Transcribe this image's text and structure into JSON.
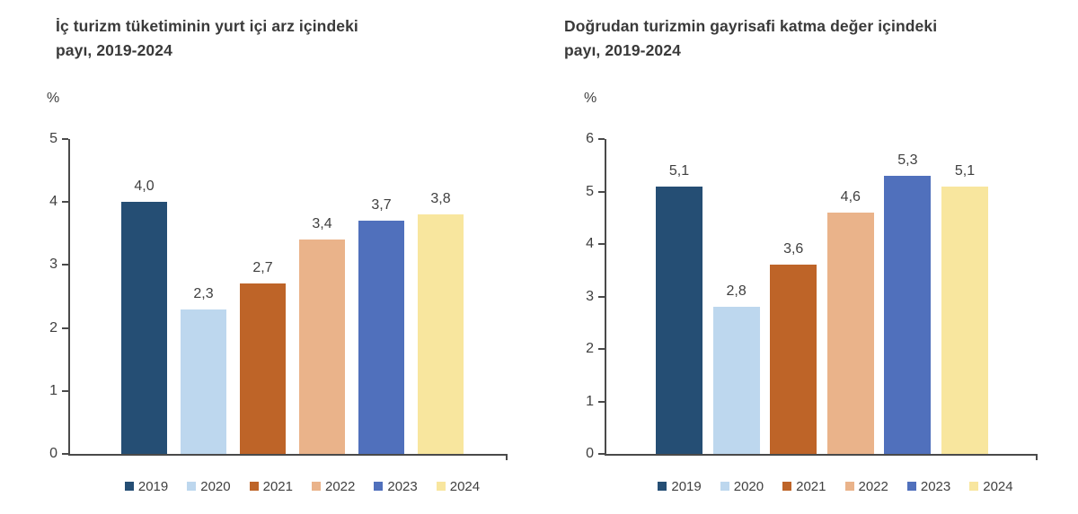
{
  "page": {
    "background_color": "#ffffff",
    "text_color": "#3f3f3f",
    "axis_color": "#4a4a4a"
  },
  "chart_data": [
    {
      "type": "bar",
      "title": "İç turizm tüketiminin yurt içi arz içindeki payı, 2019-2024",
      "title_lines": [
        "İç turizm tüketiminin yurt içi arz içindeki",
        "payı, 2019-2024"
      ],
      "unit_label": "%",
      "xlabel": "",
      "ylabel": "%",
      "categories": [
        "2019",
        "2020",
        "2021",
        "2022",
        "2023",
        "2024"
      ],
      "values": [
        4.0,
        2.3,
        2.7,
        3.4,
        3.7,
        3.8
      ],
      "value_labels": [
        "4,0",
        "2,3",
        "2,7",
        "3,4",
        "3,7",
        "3,8"
      ],
      "ylim": [
        0,
        5
      ],
      "yticks": [
        "0",
        "1",
        "2",
        "3",
        "4",
        "5"
      ],
      "grid": false,
      "legend_position": "bottom",
      "bar_colors": [
        "#254E74",
        "#BDD7EE",
        "#BE6428",
        "#EAB38A",
        "#5070BC",
        "#F8E69E"
      ]
    },
    {
      "type": "bar",
      "title": "Doğrudan turizmin gayrisafi katma değer içindeki payı, 2019-2024",
      "title_lines": [
        "Doğrudan turizmin gayrisafi katma değer içindeki",
        "payı, 2019-2024"
      ],
      "unit_label": "%",
      "xlabel": "",
      "ylabel": "%",
      "categories": [
        "2019",
        "2020",
        "2021",
        "2022",
        "2023",
        "2024"
      ],
      "values": [
        5.1,
        2.8,
        3.6,
        4.6,
        5.3,
        5.1
      ],
      "value_labels": [
        "5,1",
        "2,8",
        "3,6",
        "4,6",
        "5,3",
        "5,1"
      ],
      "ylim": [
        0,
        6
      ],
      "yticks": [
        "0",
        "1",
        "2",
        "3",
        "4",
        "5",
        "6"
      ],
      "grid": false,
      "legend_position": "bottom",
      "bar_colors": [
        "#254E74",
        "#BDD7EE",
        "#BE6428",
        "#EAB38A",
        "#5070BC",
        "#F8E69E"
      ]
    }
  ]
}
